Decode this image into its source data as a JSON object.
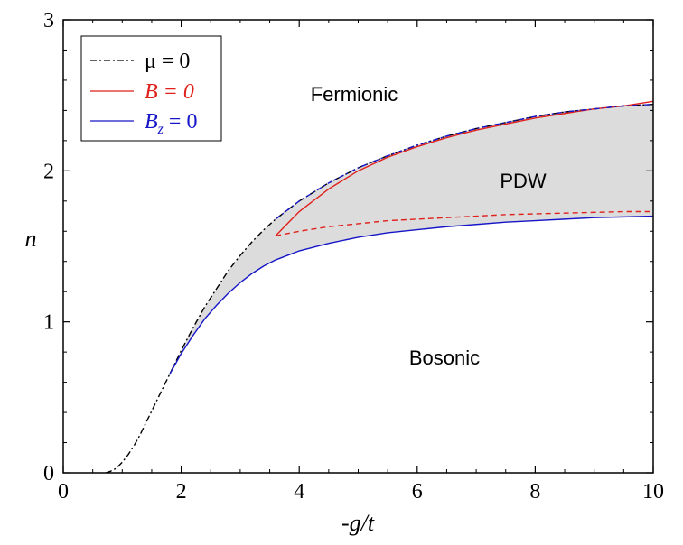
{
  "chart_data": {
    "type": "line",
    "title": "",
    "xlabel": "-g/t",
    "ylabel": "n",
    "xlim": [
      0,
      10
    ],
    "ylim": [
      0,
      3
    ],
    "x_ticks": [
      "0",
      "2",
      "4",
      "6",
      "8",
      "10"
    ],
    "y_ticks": [
      "0",
      "1",
      "2",
      "3"
    ],
    "legend": {
      "placement": "top-left",
      "entries": [
        {
          "label": "μ = 0",
          "color": "#000000",
          "style": "dashdot"
        },
        {
          "label": "B = 0",
          "color": "#e0201b",
          "style": "solid"
        },
        {
          "label": "Bz = 0",
          "label_main": "B",
          "label_sub": "z",
          "label_rest": " = 0",
          "color": "#1616c8",
          "style": "solid"
        }
      ]
    },
    "region_labels": {
      "fermionic": "Fermionic",
      "pdw": "PDW",
      "bosonic": "Bosonic"
    },
    "series": [
      {
        "name": "μ = 0",
        "color": "#000000",
        "style": "dashdot",
        "x": [
          0.72,
          0.8,
          0.9,
          1.0,
          1.1,
          1.2,
          1.3,
          1.4,
          1.5,
          1.6,
          1.7,
          1.8,
          2.0,
          2.2,
          2.4,
          2.6,
          2.8,
          3.0,
          3.2,
          3.4,
          3.6,
          3.8,
          4.0,
          4.5,
          5.0,
          5.5,
          6.0,
          6.5,
          7.0,
          7.5,
          8.0,
          8.5,
          9.0,
          9.5,
          10.0
        ],
        "y": [
          0.0,
          0.01,
          0.03,
          0.07,
          0.12,
          0.18,
          0.25,
          0.33,
          0.41,
          0.49,
          0.57,
          0.65,
          0.81,
          0.96,
          1.1,
          1.22,
          1.34,
          1.44,
          1.53,
          1.61,
          1.68,
          1.74,
          1.8,
          1.92,
          2.02,
          2.1,
          2.17,
          2.23,
          2.28,
          2.32,
          2.36,
          2.39,
          2.41,
          2.43,
          2.44
        ]
      },
      {
        "name": "B = 0 (upper)",
        "color": "#e0201b",
        "style": "solid",
        "x": [
          3.6,
          3.8,
          4.0,
          4.5,
          5.0,
          5.5,
          6.0,
          6.5,
          7.0,
          7.5,
          8.0,
          8.5,
          9.0,
          9.5,
          10.0
        ],
        "y": [
          1.57,
          1.65,
          1.73,
          1.88,
          2.0,
          2.09,
          2.16,
          2.22,
          2.27,
          2.31,
          2.35,
          2.38,
          2.41,
          2.43,
          2.46
        ]
      },
      {
        "name": "B = 0 (lower)",
        "color": "#e0201b",
        "style": "dashed",
        "x": [
          3.6,
          4.0,
          4.5,
          5.0,
          5.5,
          6.0,
          6.5,
          7.0,
          7.5,
          8.0,
          8.5,
          9.0,
          9.5,
          10.0
        ],
        "y": [
          1.57,
          1.6,
          1.63,
          1.65,
          1.67,
          1.68,
          1.69,
          1.7,
          1.71,
          1.715,
          1.72,
          1.725,
          1.73,
          1.73
        ]
      },
      {
        "name": "Bz = 0",
        "color": "#1616c8",
        "style": "solid",
        "x": [
          1.8,
          2.0,
          2.2,
          2.4,
          2.6,
          2.8,
          3.0,
          3.2,
          3.4,
          3.6,
          3.8,
          4.0,
          4.5,
          5.0,
          5.5,
          6.0,
          6.5,
          7.0,
          7.5,
          8.0,
          8.5,
          9.0,
          9.5,
          10.0
        ],
        "y": [
          0.65,
          0.79,
          0.91,
          1.02,
          1.11,
          1.19,
          1.26,
          1.32,
          1.37,
          1.41,
          1.44,
          1.47,
          1.52,
          1.56,
          1.59,
          1.61,
          1.63,
          1.645,
          1.66,
          1.67,
          1.68,
          1.69,
          1.695,
          1.7
        ]
      }
    ],
    "colors": {
      "pdw_fill": "#dcdcdc"
    }
  }
}
